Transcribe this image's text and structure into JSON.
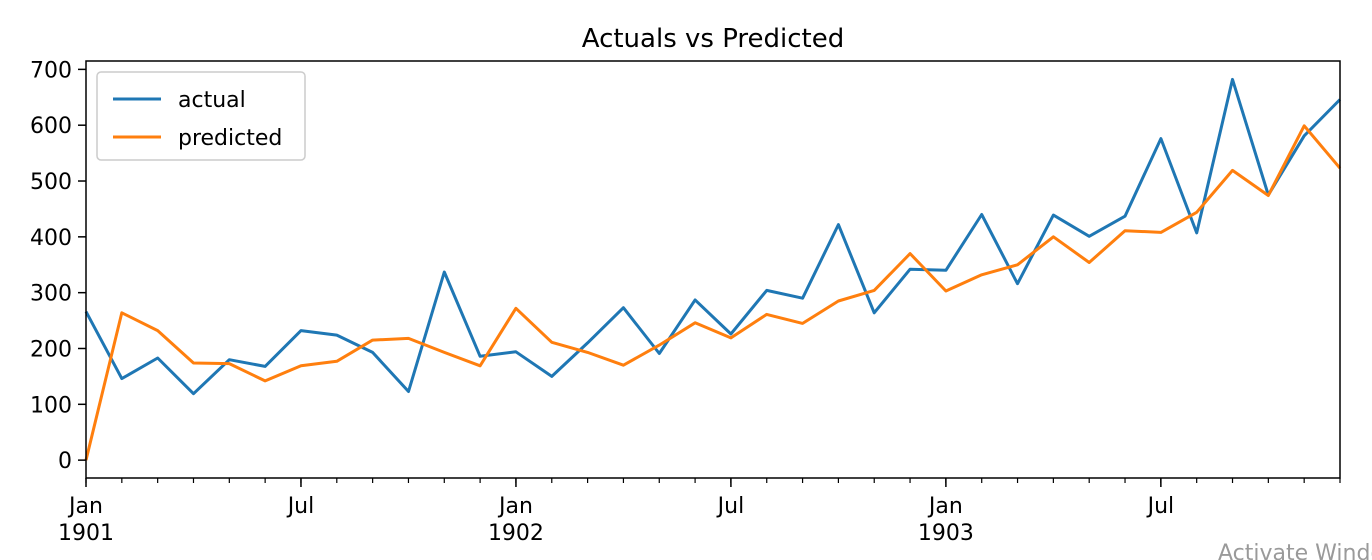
{
  "chart_data": {
    "type": "line",
    "title": "Actuals vs Predicted",
    "xlabel": "",
    "ylabel": "",
    "x": [
      "1901-01",
      "1901-02",
      "1901-03",
      "1901-04",
      "1901-05",
      "1901-06",
      "1901-07",
      "1901-08",
      "1901-09",
      "1901-10",
      "1901-11",
      "1901-12",
      "1902-01",
      "1902-02",
      "1902-03",
      "1902-04",
      "1902-05",
      "1902-06",
      "1902-07",
      "1902-08",
      "1902-09",
      "1902-10",
      "1902-11",
      "1902-12",
      "1903-01",
      "1903-02",
      "1903-03",
      "1903-04",
      "1903-05",
      "1903-06",
      "1903-07",
      "1903-08",
      "1903-09",
      "1903-10",
      "1903-11",
      "1903-12"
    ],
    "series": [
      {
        "name": "actual",
        "color": "#1f77b4",
        "values": [
          266,
          146,
          183,
          119,
          180,
          168,
          232,
          224,
          193,
          123,
          337,
          186,
          194,
          150,
          210,
          273,
          191,
          287,
          226,
          304,
          290,
          422,
          264,
          342,
          340,
          440,
          316,
          439,
          401,
          437,
          576,
          407,
          682,
          475,
          581,
          646
        ]
      },
      {
        "name": "predicted",
        "color": "#ff7f0e",
        "values": [
          0,
          264,
          232,
          174,
          173,
          142,
          169,
          177,
          215,
          218,
          193,
          169,
          272,
          211,
          193,
          170,
          206,
          246,
          219,
          261,
          245,
          285,
          304,
          370,
          303,
          332,
          350,
          400,
          354,
          411,
          408,
          444,
          519,
          474,
          599,
          523
        ]
      }
    ],
    "ylim": [
      -32,
      715
    ],
    "yticks": [
      "0",
      "100",
      "200",
      "300",
      "400",
      "500",
      "600",
      "700"
    ],
    "xticks": [
      {
        "month": "1901-01",
        "label": "Jan",
        "year": "1901"
      },
      {
        "month": "1901-07",
        "label": "Jul",
        "year": ""
      },
      {
        "month": "1902-01",
        "label": "Jan",
        "year": "1902"
      },
      {
        "month": "1902-07",
        "label": "Jul",
        "year": ""
      },
      {
        "month": "1903-01",
        "label": "Jan",
        "year": "1903"
      },
      {
        "month": "1903-07",
        "label": "Jul",
        "year": ""
      }
    ],
    "grid": false,
    "legend": "upper left"
  },
  "watermark": "Activate Windows"
}
